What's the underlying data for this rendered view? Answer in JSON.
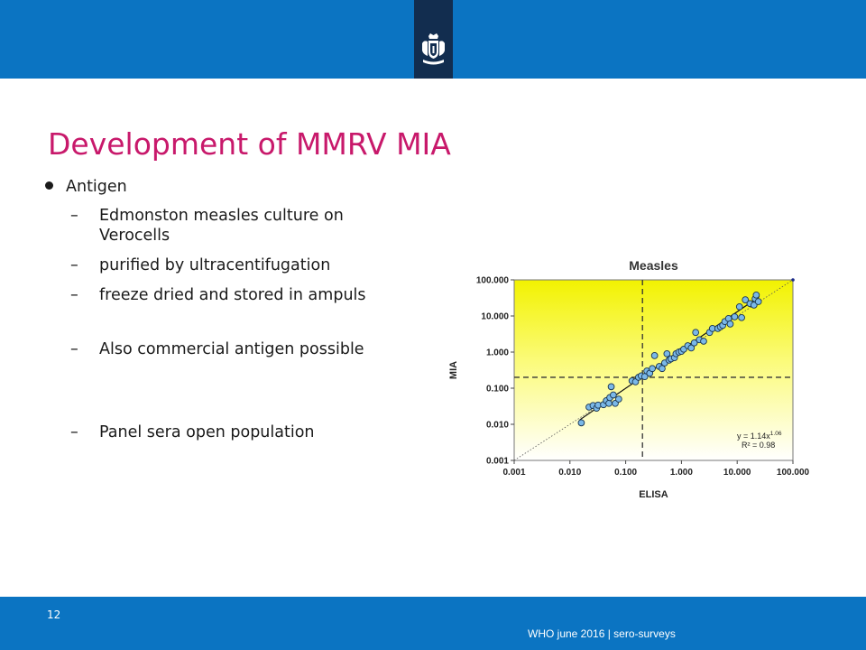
{
  "slide": {
    "title": "Development of MMRV MIA",
    "bullet": "Antigen",
    "subitems": [
      "Edmonston measles culture on Verocells",
      "purified by ultracentifugation",
      "freeze dried and stored in ampuls",
      "Also commercial antigen possible",
      "Panel sera open population"
    ],
    "page_number": "12",
    "footer": "WHO june 2016 | sero-surveys"
  },
  "colors": {
    "top_bar": "#0b74c2",
    "logo_block": "#122d4f",
    "title": "#c8196b",
    "point_fill": "#7ab8e8"
  },
  "chart_data": {
    "type": "scatter",
    "title": "Measles",
    "xlabel": "ELISA",
    "ylabel": "MIA",
    "x_scale": "log",
    "y_scale": "log",
    "xlim": [
      0.001,
      100
    ],
    "ylim": [
      0.001,
      100
    ],
    "x_ticks": [
      "0.001",
      "0.010",
      "0.100",
      "1.000",
      "10.000",
      "100.000"
    ],
    "y_ticks": [
      "100.000",
      "10.000",
      "1.000",
      "0.100",
      "0.010",
      "0.001"
    ],
    "cutoff_x": 0.2,
    "cutoff_y": 0.2,
    "equation": "y = 1.14x",
    "equation_exponent": "1.06",
    "r2": "R² = 0.98",
    "fit": {
      "a": 1.14,
      "b": 1.06
    },
    "points": [
      [
        0.016,
        0.011
      ],
      [
        0.022,
        0.03
      ],
      [
        0.026,
        0.033
      ],
      [
        0.03,
        0.028
      ],
      [
        0.032,
        0.034
      ],
      [
        0.04,
        0.035
      ],
      [
        0.045,
        0.045
      ],
      [
        0.05,
        0.038
      ],
      [
        0.052,
        0.055
      ],
      [
        0.055,
        0.11
      ],
      [
        0.06,
        0.065
      ],
      [
        0.065,
        0.038
      ],
      [
        0.075,
        0.05
      ],
      [
        0.13,
        0.16
      ],
      [
        0.15,
        0.15
      ],
      [
        0.17,
        0.2
      ],
      [
        0.19,
        0.22
      ],
      [
        0.22,
        0.21
      ],
      [
        0.24,
        0.3
      ],
      [
        0.27,
        0.26
      ],
      [
        0.3,
        0.35
      ],
      [
        0.33,
        0.8
      ],
      [
        0.4,
        0.4
      ],
      [
        0.45,
        0.35
      ],
      [
        0.5,
        0.5
      ],
      [
        0.55,
        0.9
      ],
      [
        0.6,
        0.6
      ],
      [
        0.65,
        0.65
      ],
      [
        0.75,
        0.7
      ],
      [
        0.8,
        0.9
      ],
      [
        0.9,
        1.0
      ],
      [
        1.0,
        1.05
      ],
      [
        1.1,
        1.2
      ],
      [
        1.3,
        1.5
      ],
      [
        1.5,
        1.3
      ],
      [
        1.7,
        1.8
      ],
      [
        1.8,
        3.5
      ],
      [
        2.1,
        2.2
      ],
      [
        2.5,
        2.0
      ],
      [
        3.2,
        3.5
      ],
      [
        3.6,
        4.5
      ],
      [
        4.5,
        4.5
      ],
      [
        5.0,
        5.0
      ],
      [
        5.5,
        5.5
      ],
      [
        6.0,
        7.0
      ],
      [
        7.0,
        8.5
      ],
      [
        7.5,
        6.0
      ],
      [
        9.0,
        9.5
      ],
      [
        11.0,
        18.0
      ],
      [
        12.0,
        9.0
      ],
      [
        14.0,
        28.0
      ],
      [
        17.0,
        22.0
      ],
      [
        20.0,
        20.0
      ],
      [
        21.0,
        30.0
      ],
      [
        22.0,
        38.0
      ],
      [
        24.0,
        25.0
      ]
    ]
  }
}
